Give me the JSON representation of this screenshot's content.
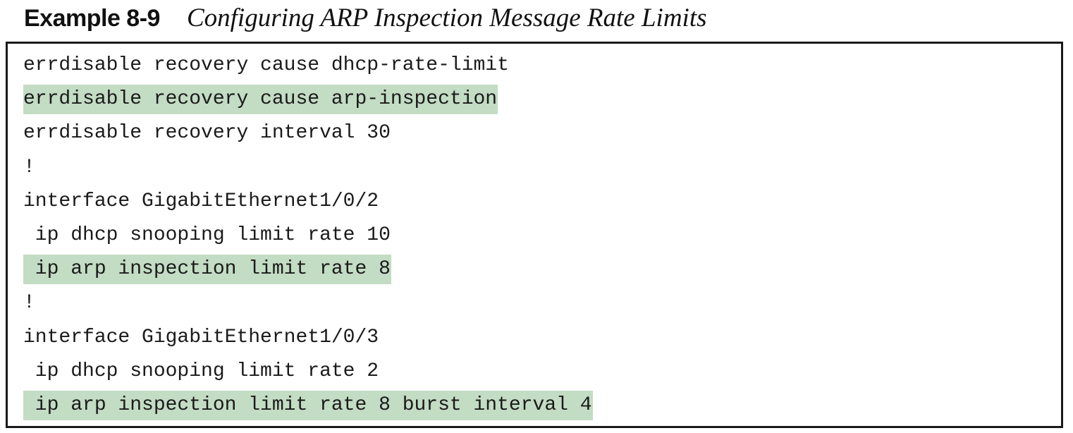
{
  "header": {
    "example_label": "Example 8-9",
    "caption": "Configuring ARP Inspection Message Rate Limits"
  },
  "highlight_color": "#c3dcc4",
  "code": {
    "lines": [
      {
        "text": "errdisable recovery cause dhcp-rate-limit",
        "highlighted": false
      },
      {
        "text": "errdisable recovery cause arp-inspection",
        "highlighted": true
      },
      {
        "text": "errdisable recovery interval 30",
        "highlighted": false
      },
      {
        "text": "!",
        "highlighted": false
      },
      {
        "text": "interface GigabitEthernet1/0/2",
        "highlighted": false
      },
      {
        "text": " ip dhcp snooping limit rate 10",
        "highlighted": false
      },
      {
        "text": " ip arp inspection limit rate 8",
        "highlighted": true
      },
      {
        "text": "!",
        "highlighted": false
      },
      {
        "text": "interface GigabitEthernet1/0/3",
        "highlighted": false
      },
      {
        "text": " ip dhcp snooping limit rate 2",
        "highlighted": false
      },
      {
        "text": " ip arp inspection limit rate 8 burst interval 4",
        "highlighted": true
      }
    ]
  }
}
